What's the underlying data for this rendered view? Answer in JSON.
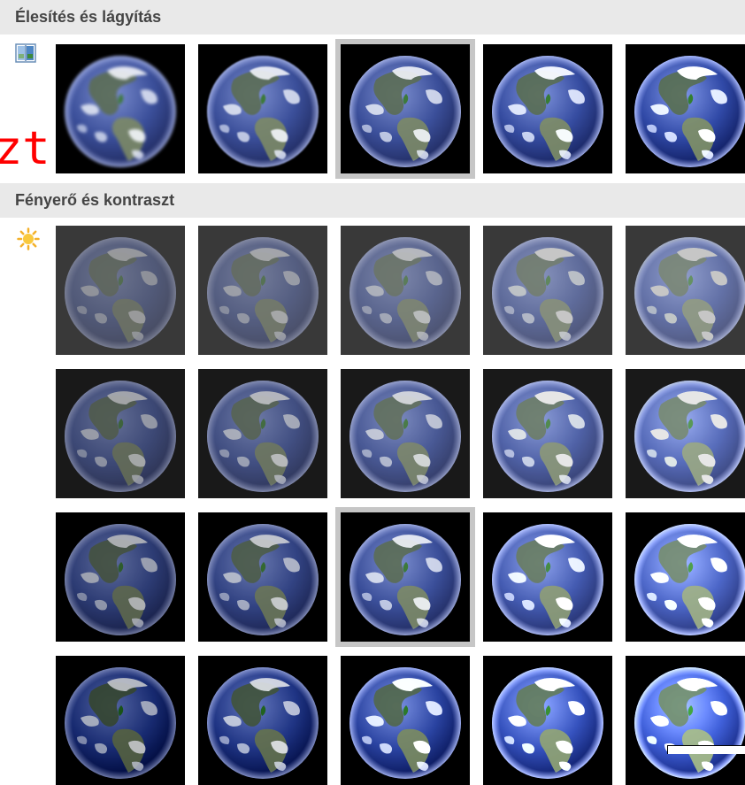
{
  "sections": [
    {
      "id": "sharpen",
      "title": "Élesítés és lágyítás",
      "icon": "sharpen-soften-icon",
      "columns": 5,
      "selected_index": 2,
      "variants": [
        {
          "brightness": 1.0,
          "contrast": 1.0,
          "blur": 1.6
        },
        {
          "brightness": 1.0,
          "contrast": 1.0,
          "blur": 0.8
        },
        {
          "brightness": 1.0,
          "contrast": 1.0,
          "blur": 0
        },
        {
          "brightness": 1.02,
          "contrast": 1.1,
          "blur": 0
        },
        {
          "brightness": 1.04,
          "contrast": 1.2,
          "blur": 0
        }
      ]
    },
    {
      "id": "brightness",
      "title": "Fényerő és kontraszt",
      "icon": "sun-icon",
      "columns": 5,
      "selected_index": 12,
      "variants": [
        {
          "brightness": 0.75,
          "contrast": 0.55,
          "blur": 0
        },
        {
          "brightness": 0.85,
          "contrast": 0.55,
          "blur": 0
        },
        {
          "brightness": 1.0,
          "contrast": 0.55,
          "blur": 0
        },
        {
          "brightness": 1.15,
          "contrast": 0.55,
          "blur": 0
        },
        {
          "brightness": 1.3,
          "contrast": 0.55,
          "blur": 0
        },
        {
          "brightness": 0.75,
          "contrast": 0.8,
          "blur": 0
        },
        {
          "brightness": 0.85,
          "contrast": 0.8,
          "blur": 0
        },
        {
          "brightness": 1.0,
          "contrast": 0.8,
          "blur": 0
        },
        {
          "brightness": 1.15,
          "contrast": 0.8,
          "blur": 0
        },
        {
          "brightness": 1.3,
          "contrast": 0.8,
          "blur": 0
        },
        {
          "brightness": 0.75,
          "contrast": 1.0,
          "blur": 0
        },
        {
          "brightness": 0.85,
          "contrast": 1.0,
          "blur": 0
        },
        {
          "brightness": 1.0,
          "contrast": 1.0,
          "blur": 0
        },
        {
          "brightness": 1.15,
          "contrast": 1.0,
          "blur": 0
        },
        {
          "brightness": 1.3,
          "contrast": 1.0,
          "blur": 0
        },
        {
          "brightness": 0.75,
          "contrast": 1.25,
          "blur": 0
        },
        {
          "brightness": 0.85,
          "contrast": 1.25,
          "blur": 0
        },
        {
          "brightness": 1.0,
          "contrast": 1.25,
          "blur": 0
        },
        {
          "brightness": 1.15,
          "contrast": 1.25,
          "blur": 0
        },
        {
          "brightness": 1.3,
          "contrast": 1.25,
          "blur": 0
        }
      ]
    }
  ],
  "annotation": {
    "text": "zt",
    "color": "#ff0000"
  },
  "colors": {
    "header_bg": "#e9e9e9",
    "selection_border": "#c6c6c6",
    "thumb_bg": "#000000"
  }
}
